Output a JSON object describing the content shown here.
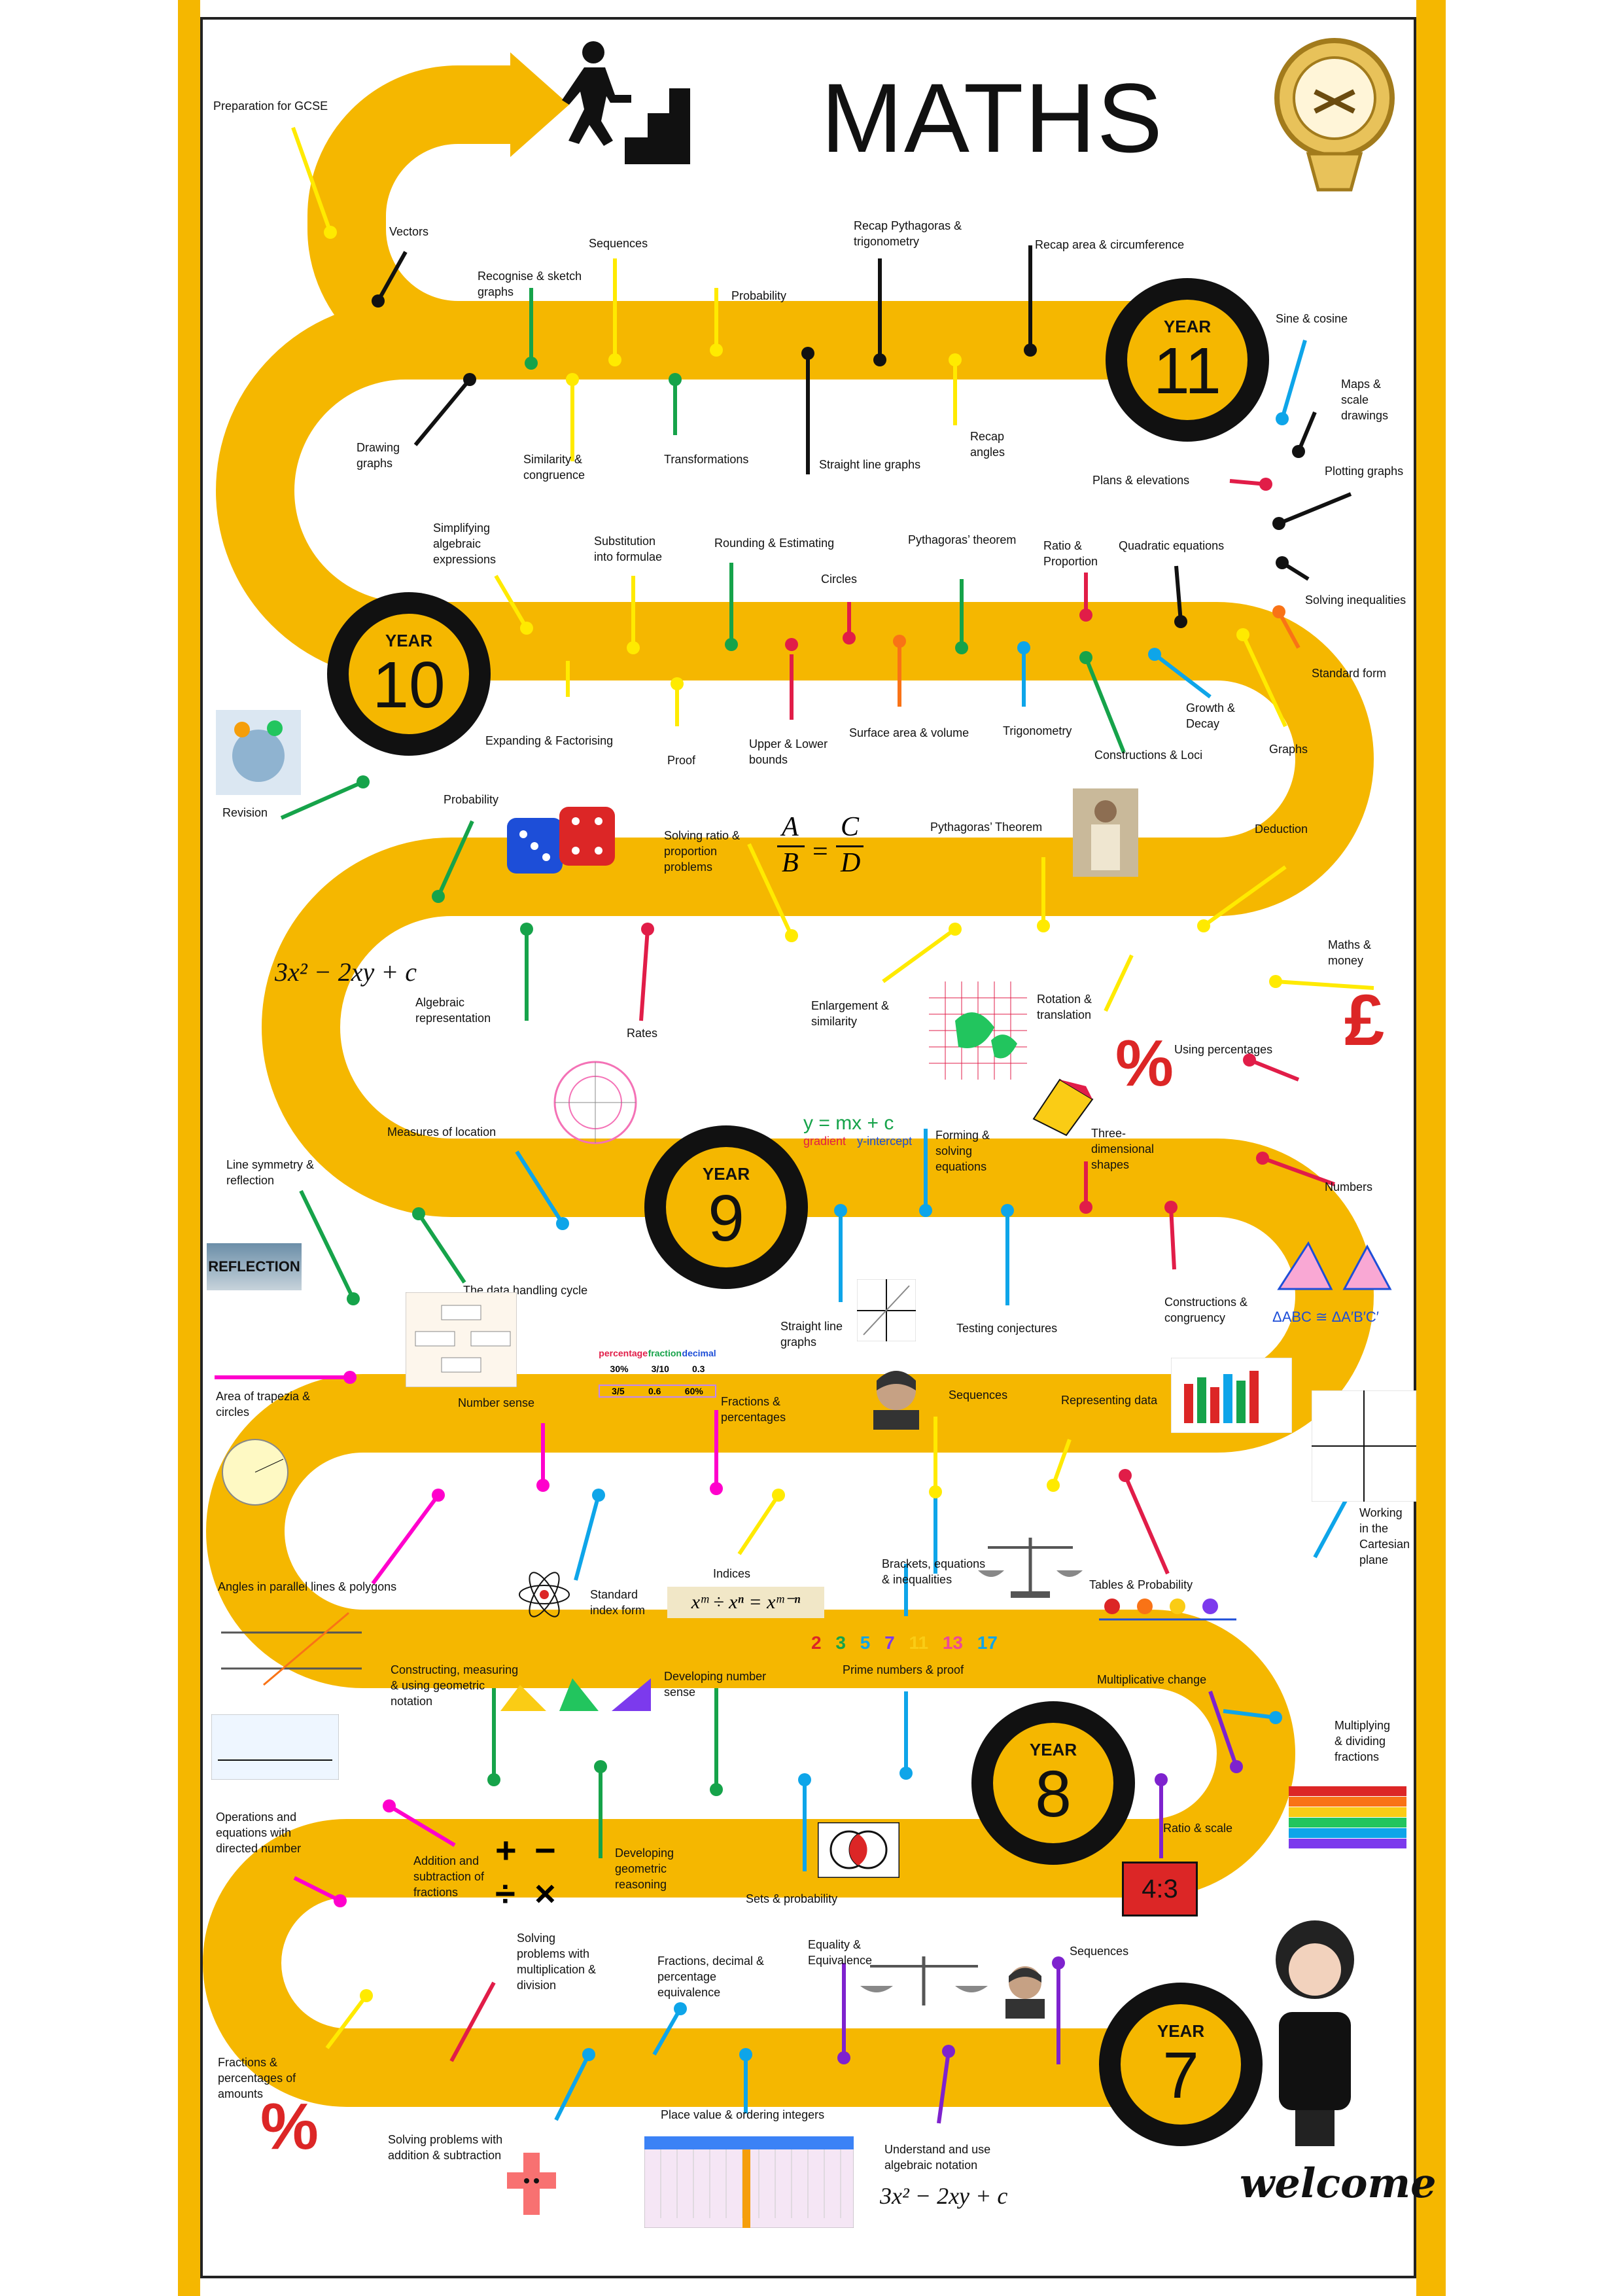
{
  "title": "MATHS",
  "years": [
    {
      "word": "YEAR",
      "num": "11"
    },
    {
      "word": "YEAR",
      "num": "10"
    },
    {
      "word": "YEAR",
      "num": "9"
    },
    {
      "word": "YEAR",
      "num": "8"
    },
    {
      "word": "YEAR",
      "num": "7"
    }
  ],
  "topics": {
    "t1": "Preparation for GCSE",
    "t2": "Vectors",
    "t3": "Recognise & sketch graphs",
    "t4": "Sequences",
    "t5": "Probability",
    "t6": "Recap Pythagoras & trigonometry",
    "t7": "Recap area & circumference",
    "t8": "Drawing graphs",
    "t9": "Similarity & congruence",
    "t10": "Transformations",
    "t11": "Straight line graphs",
    "t12": "Recap angles",
    "t13": "Sine & cosine",
    "t14": "Maps & scale drawings",
    "t15": "Plans & elevations",
    "t16": "Plotting graphs",
    "t17": "Simplifying algebraic expressions",
    "t18": "Substitution into formulae",
    "t19": "Rounding & Estimating",
    "t20": "Pythagoras’ theorem",
    "t21": "Ratio & Proportion",
    "t22": "Quadratic equations",
    "t23": "Circles",
    "t24": "Solving inequalities",
    "t25": "Standard form",
    "t26": "Expanding & Factorising",
    "t27": "Proof",
    "t28": "Upper & Lower bounds",
    "t29": "Surface area & volume",
    "t30": "Trigonometry",
    "t31": "Growth & Decay",
    "t32": "Constructions & Loci",
    "t33": "Graphs",
    "t34": "Revision",
    "t35": "Probability",
    "t36": "Solving ratio & proportion problems",
    "t37": "Pythagoras’ Theorem",
    "t38": "Deduction",
    "t39": "Maths & money",
    "t40": "Algebraic representation",
    "t41": "Rates",
    "t42": "Enlargement & similarity",
    "t43": "Rotation & translation",
    "t44": "Using percentages",
    "t45": "Measures of location",
    "t46": "Forming & solving equations",
    "t47": "Three-dimensional shapes",
    "t48": "Line symmetry & reflection",
    "t49": "Numbers",
    "t50": "The data handling cycle",
    "t51": "Straight line graphs",
    "t52": "Testing conjectures",
    "t53": "Constructions & congruency",
    "t54": "Area of trapezia & circles",
    "t55": "Number sense",
    "t56": "Fractions & percentages",
    "t57": "Sequences",
    "t58": "Representing data",
    "t59": "Working in the Cartesian plane",
    "t60": "Indices",
    "t61": "Brackets, equations & inequalities",
    "t62": "Tables & Probability",
    "t63": "Angles in parallel lines & polygons",
    "t64": "Standard index form",
    "t65": "Constructing, measuring & using geometric notation",
    "t66": "Developing number sense",
    "t67": "Prime numbers & proof",
    "t68": "Multiplicative change",
    "t69": "Multiplying & dividing fractions",
    "t70": "Operations and equations with directed number",
    "t71": "Addition and subtraction of fractions",
    "t72": "Developing geometric reasoning",
    "t73": "Sets & probability",
    "t74": "Ratio & scale",
    "t75": "Solving problems with multiplication & division",
    "t76": "Fractions, decimal & percentage equivalence",
    "t77": "Equality & Equivalence",
    "t78": "Sequences",
    "t79": "Fractions & percentages of amounts",
    "t80": "Solving problems with addition & subtraction",
    "t81": "Place value & ordering integers",
    "t82": "Understand and use algebraic notation"
  },
  "images": {
    "ratio_box": "4:3",
    "pound_symbol": "£",
    "percent_symbol_1": "%",
    "percent_symbol_2": "%",
    "ratio_formula_a": "A",
    "ratio_formula_b": "B",
    "ratio_formula_c": "C",
    "ratio_formula_d": "D",
    "algebra_expr": "3x² − 2xy + c",
    "algebra_expr_2": "3x² − 2xy + c",
    "line_eq": "y = mx + c",
    "line_eq_gradient": "gradient",
    "line_eq_intercept": "y-intercept",
    "primes": [
      "2",
      "3",
      "5",
      "7",
      "11",
      "13",
      "17"
    ],
    "ops": [
      "+",
      "−",
      "÷",
      "×"
    ],
    "welcome": "welcome",
    "reflection": "REFLECTION",
    "congruent_text": "ΔABC ≅ ΔA′B′C′",
    "percentage_table_head": [
      "percentage",
      "fraction",
      "decimal"
    ],
    "percentage_table_row": [
      "30%",
      "3/10",
      "0.3"
    ],
    "percentage_table_row2": [
      "3/5",
      "0.6",
      "60%"
    ],
    "indices_formula": "xᵐ ÷ xⁿ = xᵐ⁻ⁿ"
  },
  "colors": {
    "road": "#f5b700",
    "frame": "#f5b700",
    "badge_ring": "#111111"
  }
}
